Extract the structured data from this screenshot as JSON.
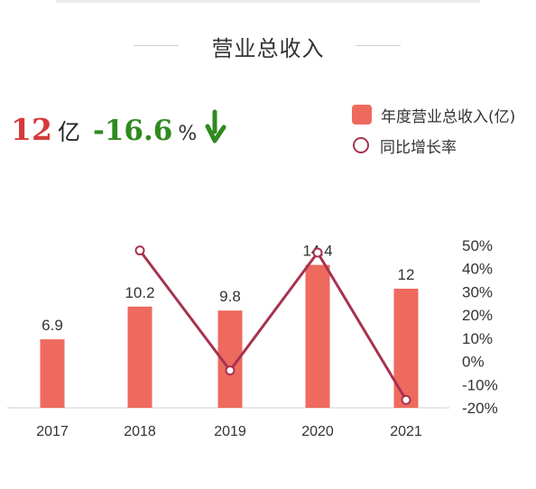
{
  "page": {
    "title": "营业总收入"
  },
  "headline": {
    "revenue_value": "12",
    "revenue_unit": "亿",
    "growth_value": "-16.6",
    "growth_unit": "%",
    "trend_icon": "down-arrow-icon"
  },
  "legend": {
    "bar_label": "年度营业总收入(亿)",
    "line_label": "同比增长率"
  },
  "colors": {
    "bar": "#ee6a5e",
    "line": "#a83250",
    "revenue_value": "#d6393b",
    "growth_value": "#2f8a1f"
  },
  "chart_data": {
    "type": "bar",
    "categories": [
      "2017",
      "2018",
      "2019",
      "2020",
      "2021"
    ],
    "series": [
      {
        "name": "年度营业总收入(亿)",
        "type": "bar",
        "axis": "left",
        "values": [
          6.9,
          10.2,
          9.8,
          14.4,
          12
        ],
        "data_labels": [
          "6.9",
          "10.2",
          "9.8",
          "14.4",
          "12"
        ]
      },
      {
        "name": "同比增长率",
        "type": "line",
        "axis": "right",
        "values": [
          null,
          47.8,
          -3.9,
          46.9,
          -16.6
        ]
      }
    ],
    "y_left_range": [
      0,
      20
    ],
    "y_right_range": [
      -20,
      50
    ],
    "y_right_ticks": [
      "50%",
      "40%",
      "30%",
      "20%",
      "10%",
      "0%",
      "-10%",
      "-20%"
    ],
    "grid": false,
    "legend_position": "top-right"
  }
}
